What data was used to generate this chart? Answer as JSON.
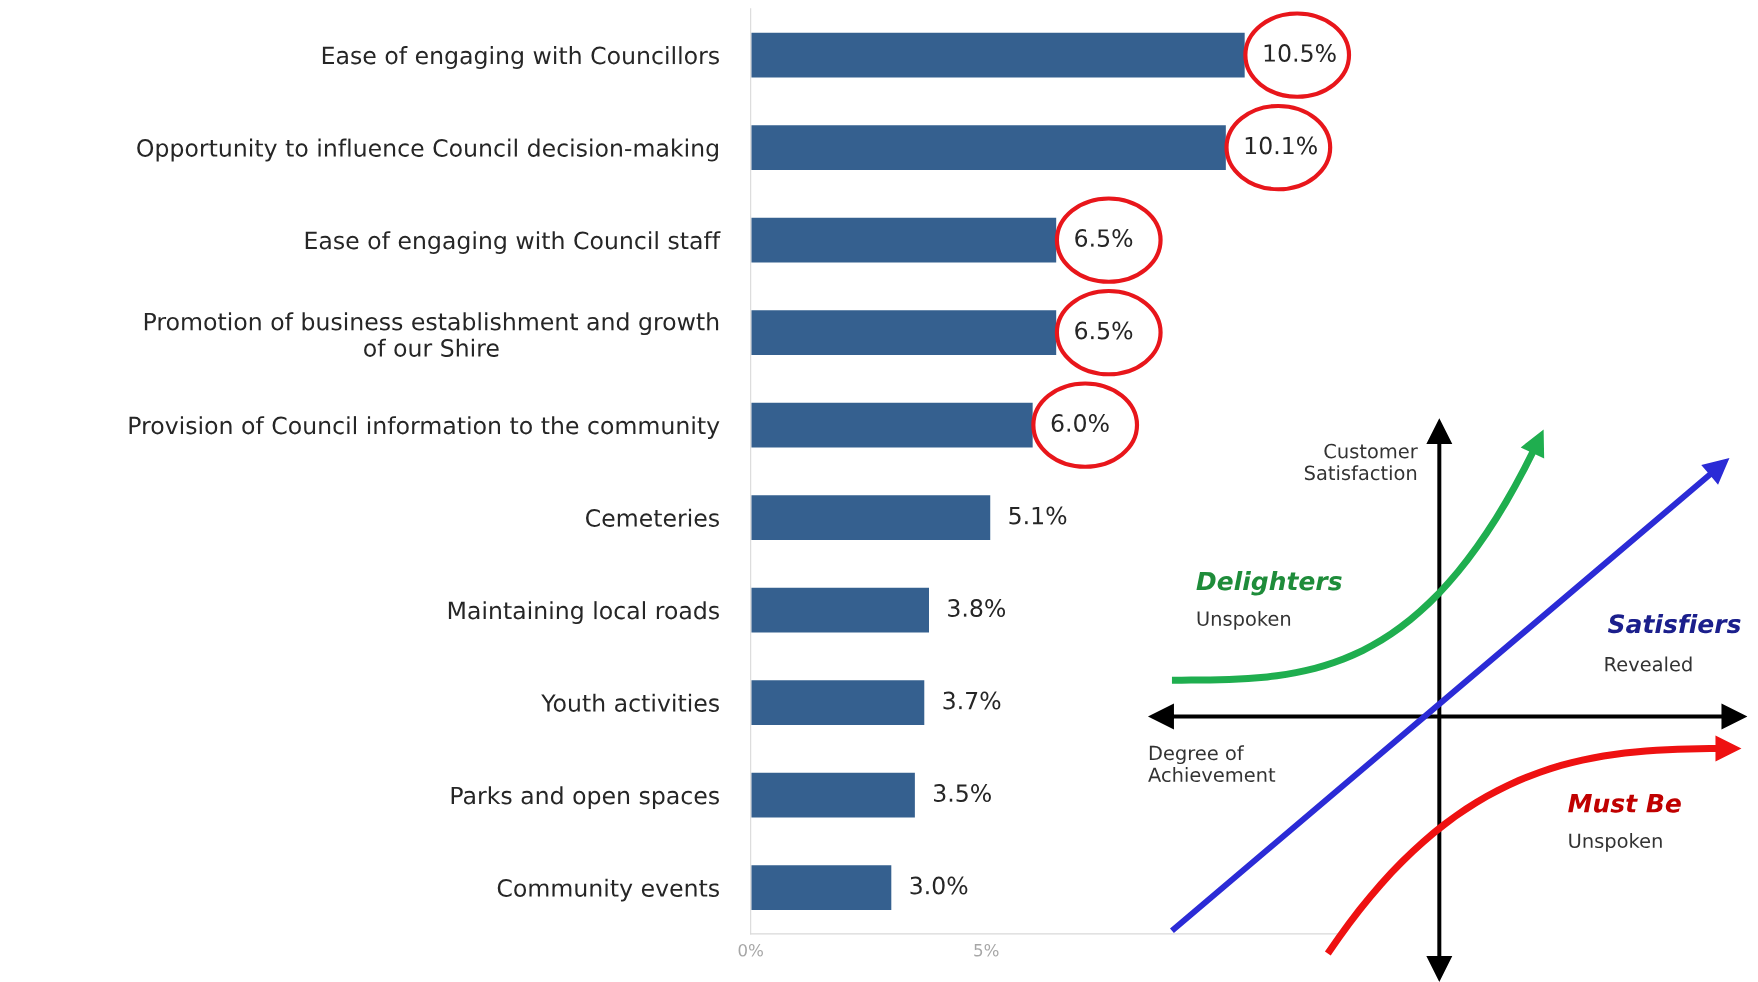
{
  "chart_data": {
    "type": "bar",
    "orientation": "horizontal",
    "categories": [
      "Ease of engaging with Councillors",
      "Opportunity to influence Council decision-making",
      "Ease of engaging with Council staff",
      "Promotion of business establishment and growth\nof our Shire",
      "Provision of Council information to the community",
      "Cemeteries",
      "Maintaining local roads",
      "Youth activities",
      "Parks and open spaces",
      "Community events"
    ],
    "values": [
      10.5,
      10.1,
      6.5,
      6.5,
      6.0,
      5.1,
      3.8,
      3.7,
      3.5,
      3.0
    ],
    "value_labels": [
      "10.5%",
      "10.1%",
      "6.5%",
      "6.5%",
      "6.0%",
      "5.1%",
      "3.8%",
      "3.7%",
      "3.5%",
      "3.0%"
    ],
    "color": "#35608f",
    "xlim": [
      0,
      12.5
    ],
    "xticks": [
      {
        "value": 0,
        "label": "0%"
      },
      {
        "value": 5,
        "label": "5%"
      }
    ],
    "grid": false,
    "legend": false,
    "annotations": [
      "Customer\nSatisfaction",
      "Delighters",
      "Unspoken",
      "Satisfiers",
      "Revealed",
      "Degree of\nAchievement",
      "Must Be",
      "Unspoken"
    ]
  }
}
